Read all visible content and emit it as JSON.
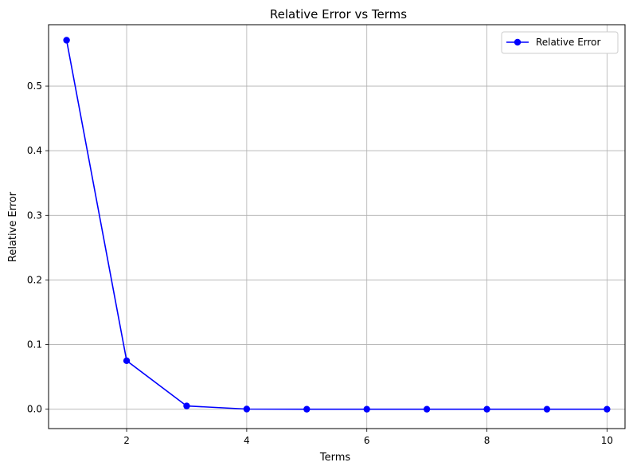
{
  "chart_data": {
    "type": "line",
    "title": "Relative Error vs Terms",
    "xlabel": "Terms",
    "ylabel": "Relative Error",
    "xlim": [
      0.7,
      10.3
    ],
    "ylim": [
      -0.03,
      0.595
    ],
    "x_ticks": [
      2,
      4,
      6,
      8,
      10
    ],
    "y_ticks": [
      0.0,
      0.1,
      0.2,
      0.3,
      0.4,
      0.5
    ],
    "x_tick_labels": [
      "2",
      "4",
      "6",
      "8",
      "10"
    ],
    "y_tick_labels": [
      "0.0",
      "0.1",
      "0.2",
      "0.3",
      "0.4",
      "0.5"
    ],
    "grid": true,
    "legend_position": "top-right",
    "series": [
      {
        "name": "Relative Error",
        "color": "#0000ff",
        "marker": "circle",
        "x": [
          1,
          2,
          3,
          4,
          5,
          6,
          7,
          8,
          9,
          10
        ],
        "values": [
          0.571,
          0.075,
          0.005,
          0.0002,
          0.0,
          0.0,
          0.0,
          0.0,
          0.0,
          0.0
        ]
      }
    ]
  }
}
